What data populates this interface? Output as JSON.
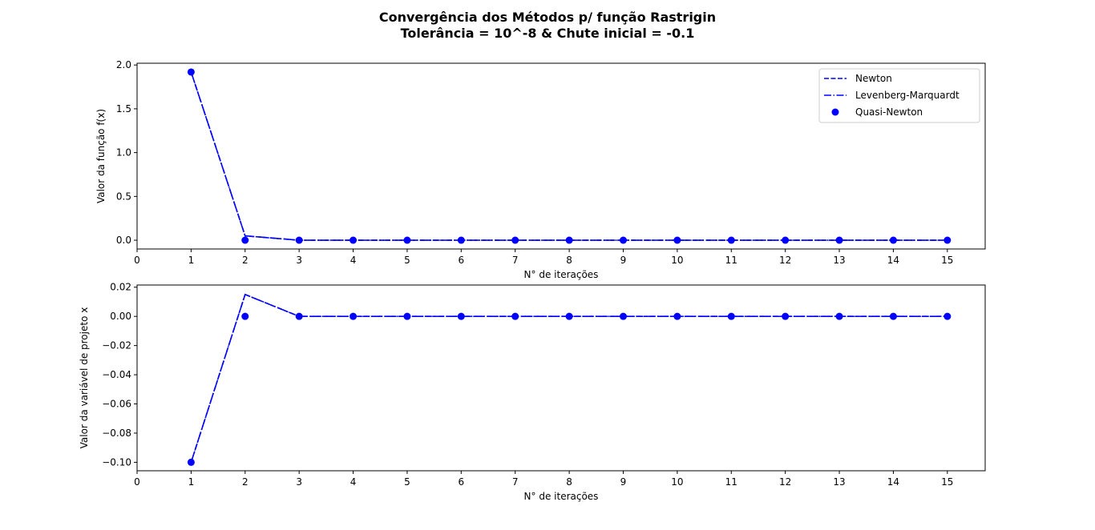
{
  "title_line1": "Convergência dos Métodos p/ função Rastrigin",
  "title_line2": "Tolerância = 10^-8 & Chute inicial = -0.1",
  "colors": {
    "series": "#0000ff",
    "axes": "#000000",
    "legend_border": "#cccccc"
  },
  "legend": {
    "placement": "upper-right",
    "entries": [
      {
        "label": "Newton",
        "style": "dashed"
      },
      {
        "label": "Levenberg-Marquardt",
        "style": "dashdot"
      },
      {
        "label": "Quasi-Newton",
        "style": "marker-circle"
      }
    ]
  },
  "chart_data": [
    {
      "type": "line",
      "xlabel": "N° de iterações",
      "ylabel": "Valor da função f(x)",
      "xlim": [
        0,
        15.7
      ],
      "ylim": [
        -0.1,
        2.02
      ],
      "xticks": [
        0,
        1,
        2,
        3,
        4,
        5,
        6,
        7,
        8,
        9,
        10,
        11,
        12,
        13,
        14,
        15
      ],
      "yticks": [
        {
          "value": 0.0,
          "label": "0.0"
        },
        {
          "value": 0.5,
          "label": "0.5"
        },
        {
          "value": 1.0,
          "label": "1.0"
        },
        {
          "value": 1.5,
          "label": "1.5"
        },
        {
          "value": 2.0,
          "label": "2.0"
        }
      ],
      "x": [
        1,
        2,
        3,
        4,
        5,
        6,
        7,
        8,
        9,
        10,
        11,
        12,
        13,
        14,
        15
      ],
      "series": [
        {
          "name": "Newton",
          "style": "dashed",
          "values": [
            1.92,
            0.05,
            0,
            0,
            0,
            0,
            0,
            0,
            0,
            0,
            0,
            0,
            0,
            0,
            0
          ]
        },
        {
          "name": "Levenberg-Marquardt",
          "style": "dashdot",
          "values": [
            1.92,
            0.05,
            0,
            0,
            0,
            0,
            0,
            0,
            0,
            0,
            0,
            0,
            0,
            0,
            0
          ]
        },
        {
          "name": "Quasi-Newton",
          "style": "marker",
          "values": [
            1.92,
            0,
            0,
            0,
            0,
            0,
            0,
            0,
            0,
            0,
            0,
            0,
            0,
            0,
            0
          ]
        }
      ],
      "show_legend": true,
      "grid": false
    },
    {
      "type": "line",
      "xlabel": "N° de iterações",
      "ylabel": "Valor da variável de projeto x",
      "xlim": [
        0,
        15.7
      ],
      "ylim": [
        -0.1058,
        0.0215
      ],
      "xticks": [
        0,
        1,
        2,
        3,
        4,
        5,
        6,
        7,
        8,
        9,
        10,
        11,
        12,
        13,
        14,
        15
      ],
      "yticks": [
        {
          "value": 0.02,
          "label": "0.02"
        },
        {
          "value": 0.0,
          "label": "0.00"
        },
        {
          "value": -0.02,
          "label": "−0.02"
        },
        {
          "value": -0.04,
          "label": "−0.04"
        },
        {
          "value": -0.06,
          "label": "−0.06"
        },
        {
          "value": -0.08,
          "label": "−0.08"
        },
        {
          "value": -0.1,
          "label": "−0.10"
        }
      ],
      "x": [
        1,
        2,
        3,
        4,
        5,
        6,
        7,
        8,
        9,
        10,
        11,
        12,
        13,
        14,
        15
      ],
      "series": [
        {
          "name": "Newton",
          "style": "dashed",
          "values": [
            -0.1,
            0.015,
            0,
            0,
            0,
            0,
            0,
            0,
            0,
            0,
            0,
            0,
            0,
            0,
            0
          ]
        },
        {
          "name": "Levenberg-Marquardt",
          "style": "dashdot",
          "values": [
            -0.1,
            0.015,
            0,
            0,
            0,
            0,
            0,
            0,
            0,
            0,
            0,
            0,
            0,
            0,
            0
          ]
        },
        {
          "name": "Quasi-Newton",
          "style": "marker",
          "values": [
            -0.1,
            0,
            0,
            0,
            0,
            0,
            0,
            0,
            0,
            0,
            0,
            0,
            0,
            0,
            0
          ]
        }
      ],
      "show_legend": false,
      "grid": false
    }
  ]
}
